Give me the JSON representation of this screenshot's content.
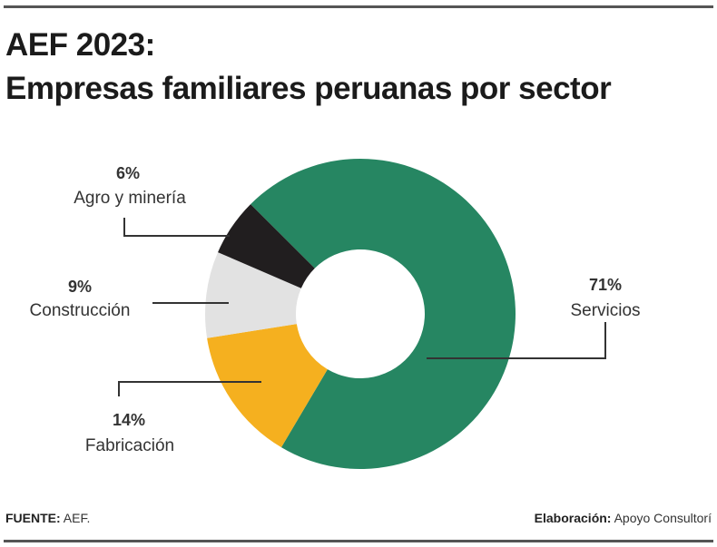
{
  "title_line1": "AEF 2023:",
  "title_line2": "Empresas familiares peruanas por sector",
  "chart_data": {
    "type": "pie",
    "donut": true,
    "slices": [
      {
        "label": "Servicios",
        "value": 71,
        "value_label": "71%",
        "color": "#268662"
      },
      {
        "label": "Fabricación",
        "value": 14,
        "value_label": "14%",
        "color": "#f5b01f"
      },
      {
        "label": "Construcción",
        "value": 9,
        "value_label": "9%",
        "color": "#e2e2e2"
      },
      {
        "label": "Agro y minería",
        "value": 6,
        "value_label": "6%",
        "color": "#211e1f"
      }
    ]
  },
  "footer": {
    "source_label": "FUENTE:",
    "source_value": "AEF.",
    "credit_label": "Elaboración:",
    "credit_value": "Apoyo Consultorí"
  }
}
